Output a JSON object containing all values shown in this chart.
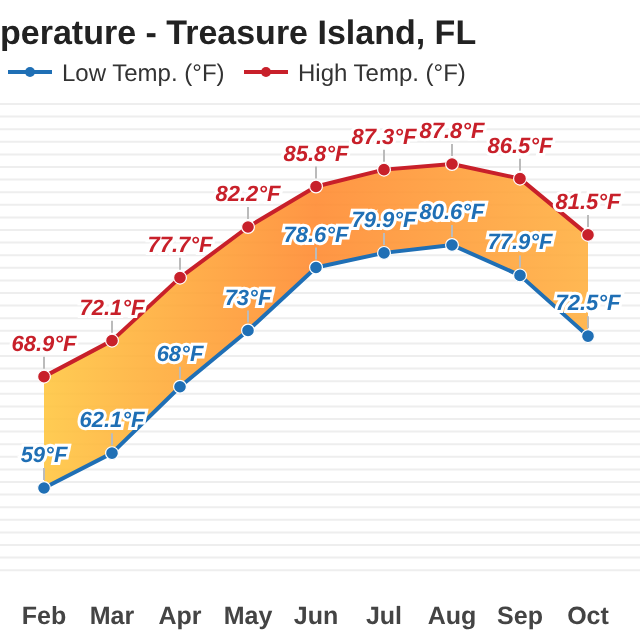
{
  "chart_data": {
    "type": "line",
    "title": "perature - Treasure Island, FL",
    "categories": [
      "Feb",
      "Mar",
      "Apr",
      "May",
      "Jun",
      "Jul",
      "Aug",
      "Sep",
      "Oct"
    ],
    "series": [
      {
        "name": "Low Temp. (°F)",
        "color": "#1f6fb5",
        "values": [
          59,
          62.1,
          68,
          73,
          78.6,
          79.9,
          80.6,
          77.9,
          72.5
        ],
        "value_labels": [
          "59°F",
          "62.1°F",
          "68°F",
          "73°F",
          "78.6°F",
          "79.9°F",
          "80.6°F",
          "77.9°F",
          "72.5°F"
        ]
      },
      {
        "name": "High Temp. (°F)",
        "color": "#c8202a",
        "values": [
          68.9,
          72.1,
          77.7,
          82.2,
          85.8,
          87.3,
          87.8,
          86.5,
          81.5
        ],
        "value_labels": [
          "68.9°F",
          "72.1°F",
          "77.7°F",
          "82.2°F",
          "85.8°F",
          "87.3°F",
          "87.8°F",
          "86.5°F",
          "81.5°F"
        ]
      }
    ],
    "marker": "circle",
    "legend": "top"
  }
}
